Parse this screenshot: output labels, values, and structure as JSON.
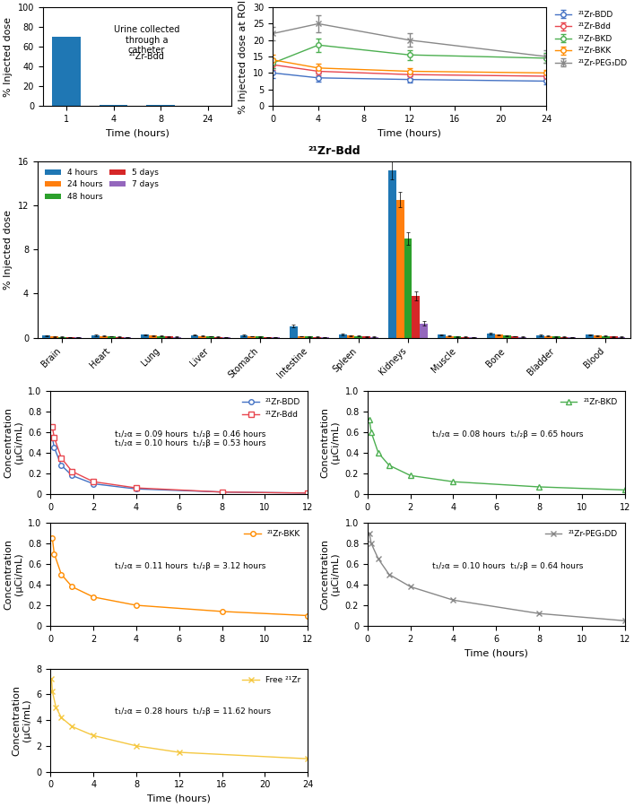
{
  "chart_data": [
    {
      "type": "bar",
      "xlabel": "Time (hours)",
      "ylabel": "% Injected dose",
      "categories": [
        "1",
        "4",
        "8",
        "24"
      ],
      "values": [
        70.0,
        1.2,
        0.5,
        0.3
      ],
      "ylim": [
        0,
        100
      ],
      "yticks": [
        0,
        20,
        40,
        60,
        80,
        100
      ],
      "annotations": [
        "Urine collected\nthrough a\ncatheter",
        "²¹Zr-Bdd"
      ]
    },
    {
      "type": "line",
      "xlabel": "Time (hours)",
      "ylabel": "% Injected dose at ROI",
      "x": [
        0,
        4,
        12,
        24
      ],
      "xlim": [
        0,
        24
      ],
      "ylim": [
        0,
        30
      ],
      "xticks": [
        0,
        4,
        8,
        12,
        16,
        20,
        24
      ],
      "yticks": [
        0,
        5,
        10,
        15,
        20,
        25,
        30
      ],
      "legend": "right",
      "series": [
        {
          "name": "²¹Zr-BDD",
          "color": "#4472c4",
          "marker": "circle",
          "values": [
            10.0,
            8.5,
            8.0,
            7.5
          ],
          "errors": [
            1.5,
            1.2,
            1.0,
            1.0
          ]
        },
        {
          "name": "²¹Zr-Bdd",
          "color": "#e8474f",
          "marker": "circle",
          "values": [
            12.5,
            10.5,
            9.5,
            9.0
          ],
          "errors": [
            1.5,
            1.2,
            1.0,
            1.0
          ]
        },
        {
          "name": "²¹Zr-BKD",
          "color": "#4caf50",
          "marker": "circle",
          "values": [
            13.0,
            18.5,
            15.5,
            14.5
          ],
          "errors": [
            1.5,
            2.0,
            1.5,
            1.5
          ]
        },
        {
          "name": "²¹Zr-BKK",
          "color": "#ff8c00",
          "marker": "circle",
          "values": [
            14.0,
            11.5,
            10.5,
            10.0
          ],
          "errors": [
            1.5,
            1.2,
            1.0,
            1.0
          ]
        },
        {
          "name": "²¹Zr-PEG₃DD",
          "color": "#888888",
          "marker": "x",
          "values": [
            22.0,
            25.0,
            20.0,
            15.0
          ],
          "errors": [
            2.0,
            2.5,
            2.0,
            2.0
          ]
        }
      ]
    },
    {
      "type": "bar",
      "title": "²¹Zr-Bdd",
      "ylabel": "% Injected dose",
      "categories": [
        "Brain",
        "Heart",
        "Lung",
        "Liver",
        "Stomach",
        "Intestine",
        "Spleen",
        "Kidneys",
        "Muscle",
        "Bone",
        "Bladder",
        "Blood"
      ],
      "ylim": [
        0,
        16
      ],
      "yticks": [
        0,
        4,
        8,
        12,
        16
      ],
      "legend": "upper left",
      "series": [
        {
          "name": "4 hours",
          "values": [
            0.18,
            0.2,
            0.25,
            0.22,
            0.2,
            1.05,
            0.3,
            15.2,
            0.25,
            0.35,
            0.2,
            0.25
          ],
          "errors": [
            0.05,
            0.05,
            0.06,
            0.05,
            0.05,
            0.12,
            0.06,
            0.8,
            0.06,
            0.08,
            0.05,
            0.06
          ]
        },
        {
          "name": "24 hours",
          "values": [
            0.1,
            0.15,
            0.18,
            0.15,
            0.12,
            0.12,
            0.2,
            12.5,
            0.15,
            0.25,
            0.15,
            0.18
          ],
          "errors": [
            0.03,
            0.04,
            0.04,
            0.04,
            0.03,
            0.03,
            0.04,
            0.7,
            0.04,
            0.05,
            0.03,
            0.04
          ]
        },
        {
          "name": "48 hours",
          "values": [
            0.08,
            0.12,
            0.15,
            0.12,
            0.1,
            0.1,
            0.15,
            9.0,
            0.1,
            0.18,
            0.1,
            0.15
          ],
          "errors": [
            0.02,
            0.03,
            0.03,
            0.03,
            0.02,
            0.02,
            0.03,
            0.6,
            0.03,
            0.04,
            0.02,
            0.03
          ]
        },
        {
          "name": "5 days",
          "values": [
            0.05,
            0.08,
            0.1,
            0.08,
            0.06,
            0.08,
            0.1,
            3.8,
            0.08,
            0.12,
            0.08,
            0.1
          ],
          "errors": [
            0.02,
            0.02,
            0.03,
            0.02,
            0.02,
            0.02,
            0.03,
            0.4,
            0.02,
            0.03,
            0.02,
            0.03
          ]
        },
        {
          "name": "7 days",
          "values": [
            0.04,
            0.06,
            0.08,
            0.05,
            0.04,
            0.05,
            0.08,
            1.3,
            0.05,
            0.08,
            0.05,
            0.08
          ],
          "errors": [
            0.02,
            0.02,
            0.02,
            0.02,
            0.02,
            0.02,
            0.02,
            0.2,
            0.02,
            0.02,
            0.02,
            0.02
          ]
        }
      ]
    },
    {
      "type": "line",
      "ylabel": "Concentration\n(μCi/mL)",
      "x": [
        0.08,
        0.17,
        0.5,
        1,
        2,
        4,
        8,
        12
      ],
      "xlim": [
        0,
        12
      ],
      "ylim": [
        0,
        1.0
      ],
      "xticks": [
        0,
        2,
        4,
        6,
        8,
        10,
        12
      ],
      "yticks": [
        0,
        0.2,
        0.4,
        0.6,
        0.8,
        {
          "value": 1.0,
          "label": "1.0"
        }
      ],
      "legend": "upper right",
      "annotations": [
        "t₁/₂α = 0.09 hours  t₁/₂β = 0.46 hours\nt₁/₂α = 0.10 hours  t₁/₂β = 0.53 hours"
      ],
      "series": [
        {
          "name": "²¹Zr-BDD",
          "color": "#4472c4",
          "marker": "circle",
          "values": [
            0.55,
            0.45,
            0.28,
            0.18,
            0.1,
            0.05,
            0.02,
            0.01
          ]
        },
        {
          "name": "²¹Zr-Bdd",
          "color": "#e8474f",
          "marker": "square",
          "values": [
            0.65,
            0.55,
            0.35,
            0.22,
            0.12,
            0.06,
            0.02,
            0.01
          ]
        }
      ]
    },
    {
      "type": "line",
      "ylabel": "Concentration\n(μCi/mL)",
      "x": [
        0.08,
        0.17,
        0.5,
        1,
        2,
        4,
        8,
        12
      ],
      "xlim": [
        0,
        12
      ],
      "ylim": [
        0,
        1.0
      ],
      "xticks": [
        0,
        2,
        4,
        6,
        8,
        10,
        12
      ],
      "yticks": [
        0,
        0.2,
        0.4,
        0.6,
        0.8,
        {
          "value": 1.0,
          "label": "1.0"
        }
      ],
      "legend": "upper right",
      "annotations": [
        "t₁/₂α = 0.08 hours  t₁/₂β = 0.65 hours"
      ],
      "series": [
        {
          "name": "²¹Zr-BKD",
          "color": "#4caf50",
          "marker": "triangle",
          "values": [
            0.72,
            0.6,
            0.4,
            0.28,
            0.18,
            0.12,
            0.07,
            0.04
          ]
        }
      ]
    },
    {
      "type": "line",
      "ylabel": "Concentration\n(μCi/mL)",
      "x": [
        0.08,
        0.17,
        0.5,
        1,
        2,
        4,
        8,
        12
      ],
      "xlim": [
        0,
        12
      ],
      "ylim": [
        0,
        1.0
      ],
      "xticks": [
        0,
        2,
        4,
        6,
        8,
        10,
        12
      ],
      "yticks": [
        0,
        0.2,
        0.4,
        0.6,
        0.8,
        {
          "value": 1.0,
          "label": "1.0"
        }
      ],
      "legend": "upper right",
      "annotations": [
        "t₁/₂α = 0.11 hours  t₁/₂β = 3.12 hours"
      ],
      "series": [
        {
          "name": "²¹Zr-BKK",
          "color": "#ff8c00",
          "marker": "circle",
          "values": [
            0.85,
            0.7,
            0.5,
            0.38,
            0.28,
            0.2,
            0.14,
            0.1
          ]
        }
      ]
    },
    {
      "type": "line",
      "xlabel": "Time (hours)",
      "ylabel": "Concentration\n(μCi/mL)",
      "x": [
        0.08,
        0.17,
        0.5,
        1,
        2,
        4,
        8,
        12
      ],
      "xlim": [
        0,
        12
      ],
      "ylim": [
        0,
        1.0
      ],
      "xticks": [
        0,
        2,
        4,
        6,
        8,
        10,
        12
      ],
      "yticks": [
        0,
        0.2,
        0.4,
        0.6,
        0.8,
        {
          "value": 1.0,
          "label": "1.0"
        }
      ],
      "legend": "upper right",
      "annotations": [
        "t₁/₂α = 0.10 hours  t₁/₂β = 0.64 hours"
      ],
      "series": [
        {
          "name": "²¹Zr-PEG₃DD",
          "color": "#888888",
          "marker": "x",
          "values": [
            0.9,
            0.8,
            0.65,
            0.5,
            0.38,
            0.25,
            0.12,
            0.05
          ]
        }
      ]
    },
    {
      "type": "line",
      "xlabel": "Time (hours)",
      "ylabel": "Concentration\n(μCi/mL)",
      "x": [
        0.08,
        0.17,
        0.5,
        1,
        2,
        4,
        8,
        12,
        24
      ],
      "xlim": [
        0,
        24
      ],
      "ylim": [
        0,
        8
      ],
      "xticks": [
        0,
        4,
        8,
        12,
        16,
        20,
        24
      ],
      "yticks": [
        0,
        2,
        4,
        6,
        8
      ],
      "legend": "upper right",
      "annotations": [
        "t₁/₂α = 0.28 hours  t₁/₂β = 11.62 hours"
      ],
      "series": [
        {
          "name": "Free ²¹Zr",
          "color": "#f5c842",
          "marker": "x",
          "values": [
            7.2,
            6.2,
            5.0,
            4.2,
            3.5,
            2.8,
            2.0,
            1.5,
            1.0
          ]
        }
      ]
    }
  ]
}
